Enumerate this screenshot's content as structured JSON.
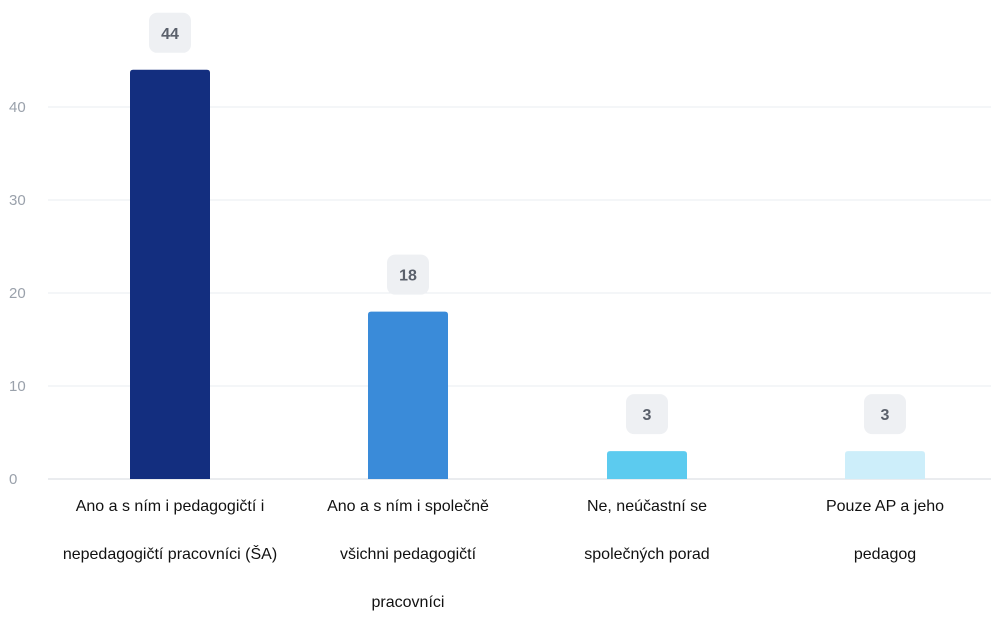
{
  "chart_data": {
    "type": "bar",
    "categories": [
      [
        "Ano a s ním i pedagogičtí i",
        "nepedagogičtí pracovníci (ŠA)"
      ],
      [
        "Ano a s ním i společně",
        "všichni pedagogičtí",
        "pracovníci"
      ],
      [
        "Ne, neúčastní se",
        "společných porad"
      ],
      [
        "Pouze AP a jeho",
        "pedagog"
      ]
    ],
    "values": [
      44,
      18,
      3,
      3
    ],
    "value_labels": [
      "44",
      "18",
      "3",
      "3"
    ],
    "colors": [
      "#132e7f",
      "#3a8bd9",
      "#5ccbef",
      "#cdeefa"
    ],
    "y_ticks": [
      0,
      10,
      20,
      30,
      40
    ],
    "y_tick_labels": [
      "0",
      "10",
      "20",
      "30",
      "40"
    ],
    "ylim": [
      0,
      44
    ],
    "grid": true,
    "title": "",
    "xlabel": "",
    "ylabel": ""
  }
}
